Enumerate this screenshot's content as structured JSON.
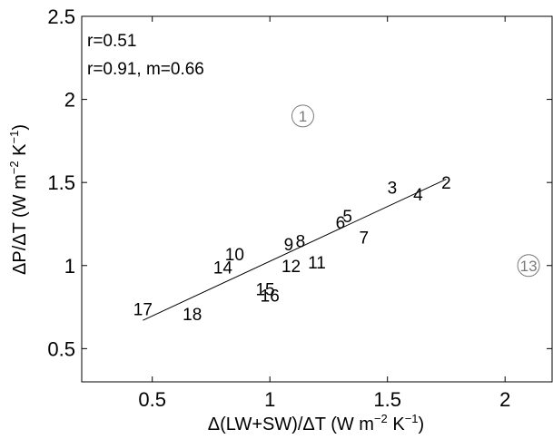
{
  "chart_data": {
    "type": "scatter",
    "title": "",
    "xlabel": "Δ(LW+SW)/ΔT (W m",
    "xlabel_sup1": "−2",
    "xlabel_mid": " K",
    "xlabel_sup2": "−1",
    "xlabel_end": ")",
    "ylabel": "ΔP/ΔT (W m",
    "ylabel_sup1": "−2",
    "ylabel_mid": " K",
    "ylabel_sup2": "−1",
    "ylabel_end": ")",
    "xlim": [
      0.2,
      2.2
    ],
    "ylim": [
      0.3,
      2.5
    ],
    "xticks": [
      0.5,
      1,
      1.5,
      2
    ],
    "yticks": [
      0.5,
      1,
      1.5,
      2,
      2.5
    ],
    "xtick_labels": [
      "0.5",
      "1",
      "1.5",
      "2"
    ],
    "ytick_labels": [
      "0.5",
      "1",
      "1.5",
      "2",
      "2.5"
    ],
    "grid": false,
    "annotations": [
      "r=0.51",
      "r=0.91, m=0.66"
    ],
    "points": [
      {
        "label": "2",
        "x": 1.75,
        "y": 1.5
      },
      {
        "label": "3",
        "x": 1.52,
        "y": 1.47
      },
      {
        "label": "4",
        "x": 1.63,
        "y": 1.43
      },
      {
        "label": "5",
        "x": 1.33,
        "y": 1.3
      },
      {
        "label": "6",
        "x": 1.3,
        "y": 1.26
      },
      {
        "label": "7",
        "x": 1.4,
        "y": 1.17
      },
      {
        "label": "8",
        "x": 1.13,
        "y": 1.15
      },
      {
        "label": "9",
        "x": 1.08,
        "y": 1.13
      },
      {
        "label": "10",
        "x": 0.85,
        "y": 1.07
      },
      {
        "label": "11",
        "x": 1.2,
        "y": 1.02
      },
      {
        "label": "12",
        "x": 1.09,
        "y": 1.0
      },
      {
        "label": "14",
        "x": 0.8,
        "y": 0.99
      },
      {
        "label": "15",
        "x": 0.98,
        "y": 0.86
      },
      {
        "label": "16",
        "x": 1.0,
        "y": 0.82
      },
      {
        "label": "17",
        "x": 0.46,
        "y": 0.74
      },
      {
        "label": "18",
        "x": 0.67,
        "y": 0.71
      }
    ],
    "outliers": [
      {
        "label": "1",
        "x": 1.14,
        "y": 1.9
      },
      {
        "label": "13",
        "x": 2.1,
        "y": 1.0
      }
    ],
    "fit_line": {
      "x": [
        0.46,
        1.75
      ],
      "y": [
        0.67,
        1.52
      ]
    }
  }
}
